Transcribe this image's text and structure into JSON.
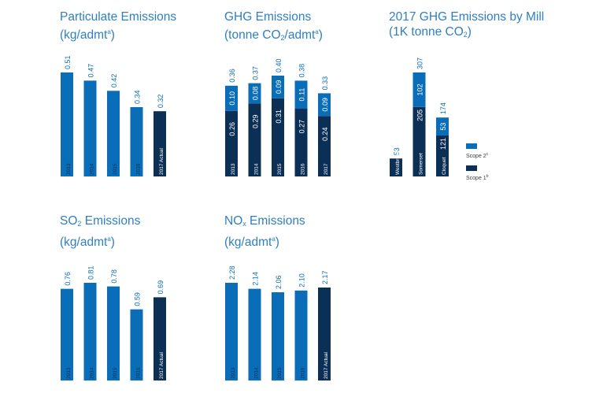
{
  "colors": {
    "light": "#0a6db8",
    "dark": "#0c2f56",
    "title": "#2f7fc1"
  },
  "chart_data": [
    {
      "id": "particulate",
      "type": "bar",
      "title": {
        "main": "Particulate Emissions",
        "line2_pre": "(kg/admt",
        "line2_sup": "a",
        "line2_post": ")"
      },
      "categories": [
        "2013",
        "2014",
        "2015",
        "2016",
        "2017 Actual"
      ],
      "values": [
        0.51,
        0.47,
        0.42,
        0.34,
        0.32
      ],
      "value_labels": [
        "0.51",
        "0.47",
        "0.42",
        "0.34",
        "0.32"
      ],
      "highlight_last": true,
      "ylim": [
        0,
        0.51
      ]
    },
    {
      "id": "ghg",
      "type": "bar",
      "stacked": true,
      "title": {
        "main": "GHG Emissions",
        "line2_pre": "(tonne CO",
        "line2_sub": "2",
        "line2_mid": "/admt",
        "line2_sup": "a",
        "line2_post": ")"
      },
      "categories": [
        "2013",
        "2014",
        "2015",
        "2016",
        "2017"
      ],
      "series": [
        {
          "values": [
            0.26,
            0.29,
            0.31,
            0.27,
            0.24
          ],
          "labels": [
            "0.26",
            "0.29",
            "0.31",
            "0.27",
            "0.24"
          ]
        },
        {
          "values": [
            0.1,
            0.08,
            0.09,
            0.11,
            0.09
          ],
          "labels": [
            "0.10",
            "0.08",
            "0.09",
            "0.11",
            "0.09"
          ]
        }
      ],
      "totals": [
        "0.36",
        "0.37",
        "0.40",
        "0.38",
        "0.33"
      ],
      "ylim": [
        0,
        0.4
      ]
    },
    {
      "id": "mill",
      "type": "bar",
      "stacked": true,
      "title": {
        "main": "2017 GHG Emissions by Mill",
        "line2_pre": "(1K tonne CO",
        "line2_sub": "2",
        "line2_post": ")"
      },
      "categories": [
        "Westbrook",
        "Somerset",
        "Cloquet"
      ],
      "series": [
        {
          "name": "Scope 1",
          "name_sup": "b",
          "values": [
            53,
            205,
            121
          ],
          "labels": [
            "",
            "205",
            "121"
          ]
        },
        {
          "name": "Scope 2",
          "name_sup": "c",
          "values": [
            0,
            102,
            53
          ],
          "labels": [
            "",
            "102",
            "53"
          ]
        }
      ],
      "totals": [
        "53",
        "307",
        "174"
      ],
      "ylim": [
        0,
        307
      ],
      "legend_placement": "right"
    },
    {
      "id": "so2",
      "type": "bar",
      "title": {
        "main_pre": "SO",
        "main_sub": "2",
        "main_post": " Emissions",
        "line2_pre": "(kg/admt",
        "line2_sup": "a",
        "line2_post": ")"
      },
      "categories": [
        "2013",
        "2014",
        "2015",
        "2016",
        "2017 Actual"
      ],
      "values": [
        0.76,
        0.81,
        0.78,
        0.59,
        0.69
      ],
      "value_labels": [
        "0.76",
        "0.81",
        "0.78",
        "0.59",
        "0.69"
      ],
      "highlight_last": true,
      "ylim": [
        0,
        0.81
      ]
    },
    {
      "id": "nox",
      "type": "bar",
      "title": {
        "main_pre": "NO",
        "main_sub": "x",
        "main_post": " Emissions",
        "line2_pre": "(kg/admt",
        "line2_sup": "a",
        "line2_post": ")"
      },
      "categories": [
        "2013",
        "2014",
        "2015",
        "2016",
        "2017 Actual"
      ],
      "values": [
        2.28,
        2.14,
        2.06,
        2.1,
        2.17
      ],
      "value_labels": [
        "2.28",
        "2.14",
        "2.06",
        "2.10",
        "2.17"
      ],
      "highlight_last": true,
      "ylim": [
        0,
        2.28
      ]
    }
  ]
}
